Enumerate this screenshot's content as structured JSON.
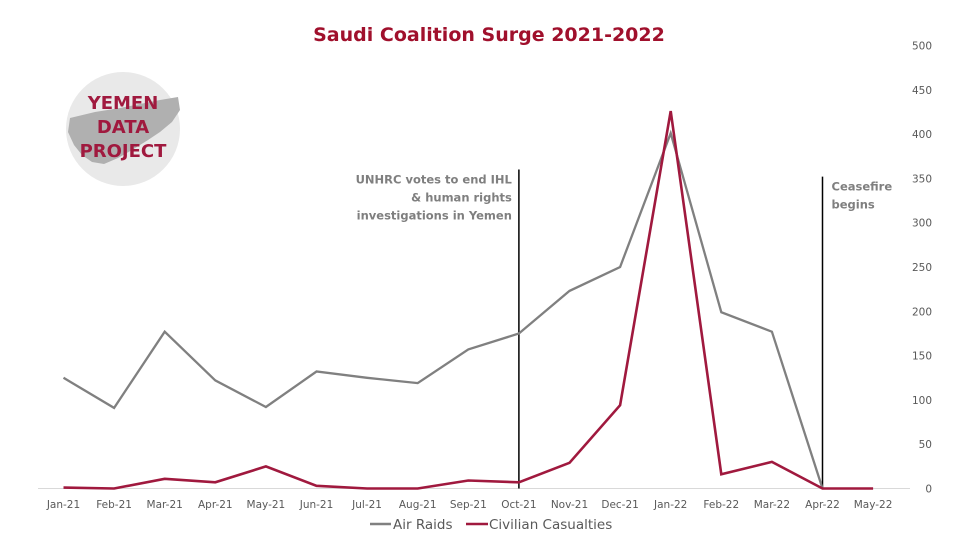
{
  "chart_data": {
    "type": "line",
    "title": "Saudi Coalition Surge 2021-2022",
    "xlabel": "",
    "ylabel": "",
    "ylim": [
      0,
      500
    ],
    "yticks": [
      0,
      50,
      100,
      150,
      200,
      250,
      300,
      350,
      400,
      450,
      500
    ],
    "y_axis_position": "right",
    "grid": false,
    "legend_position": "bottom-center",
    "categories": [
      "Jan-21",
      "Feb-21",
      "Mar-21",
      "Apr-21",
      "May-21",
      "Jun-21",
      "Jul-21",
      "Aug-21",
      "Sep-21",
      "Oct-21",
      "Nov-21",
      "Dec-21",
      "Jan-22",
      "Feb-22",
      "Mar-22",
      "Apr-22",
      "May-22"
    ],
    "series": [
      {
        "name": "Air Raids",
        "color": "#808080",
        "values": [
          125,
          91,
          177,
          122,
          92,
          132,
          125,
          119,
          157,
          175,
          223,
          250,
          401,
          199,
          177,
          0,
          null
        ]
      },
      {
        "name": "Civilian Casualties",
        "color": "#a0193e",
        "values": [
          1,
          0,
          11,
          7,
          25,
          3,
          0,
          0,
          9,
          7,
          29,
          94,
          426,
          16,
          30,
          0,
          0
        ]
      }
    ],
    "annotations": [
      {
        "at": "Oct-21",
        "lines": [
          "UNHRC votes to end IHL",
          "& human rights",
          "investigations in Yemen"
        ],
        "top_value": 360
      },
      {
        "at": "Apr-22",
        "lines": [
          "Ceasefire",
          "begins"
        ],
        "top_value": 352
      }
    ]
  },
  "logo": {
    "lines": [
      "YEMEN",
      "DATA",
      "PROJECT"
    ]
  }
}
